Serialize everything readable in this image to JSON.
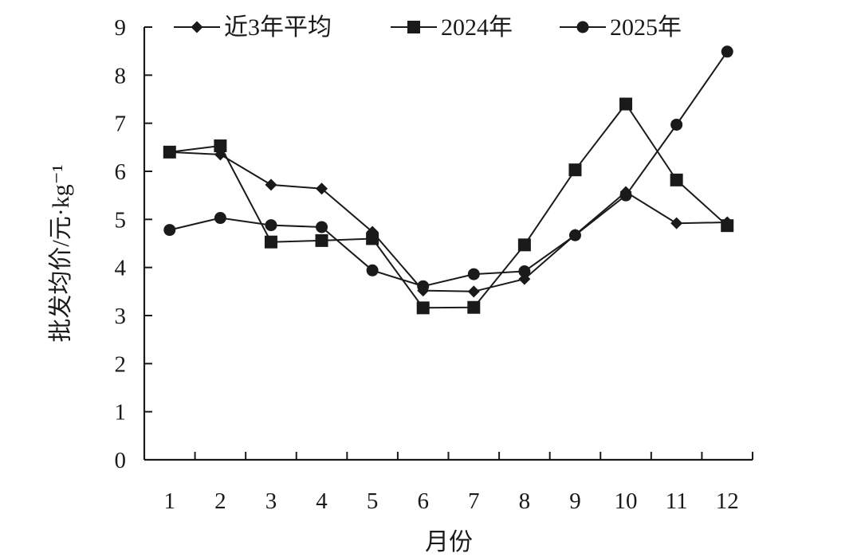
{
  "chart_data": {
    "type": "line",
    "title": "",
    "xlabel": "月份",
    "ylabel": "批发均价/元·kg⁻¹",
    "categories": [
      "1",
      "2",
      "3",
      "4",
      "5",
      "6",
      "7",
      "8",
      "9",
      "10",
      "11",
      "12"
    ],
    "ylim": [
      0,
      9
    ],
    "yticks": [
      "0",
      "1",
      "2",
      "3",
      "4",
      "5",
      "6",
      "7",
      "8",
      "9"
    ],
    "grid": false,
    "legend_position": "top",
    "series": [
      {
        "name": "近3年平均",
        "marker": "diamond",
        "values": [
          6.4,
          6.35,
          5.72,
          5.64,
          4.74,
          3.52,
          3.5,
          3.76,
          4.68,
          5.57,
          4.92,
          4.94
        ]
      },
      {
        "name": "2024年",
        "marker": "square",
        "values": [
          6.4,
          6.53,
          4.53,
          4.56,
          4.6,
          3.16,
          3.17,
          4.47,
          6.03,
          7.4,
          5.82,
          4.87
        ]
      },
      {
        "name": "2025年",
        "marker": "circle",
        "values": [
          4.78,
          5.03,
          4.88,
          4.84,
          3.94,
          3.61,
          3.86,
          3.92,
          4.67,
          5.5,
          6.97,
          8.49
        ]
      }
    ],
    "colors": {
      "line": "#1a1a1a",
      "marker": "#1a1a1a"
    }
  }
}
